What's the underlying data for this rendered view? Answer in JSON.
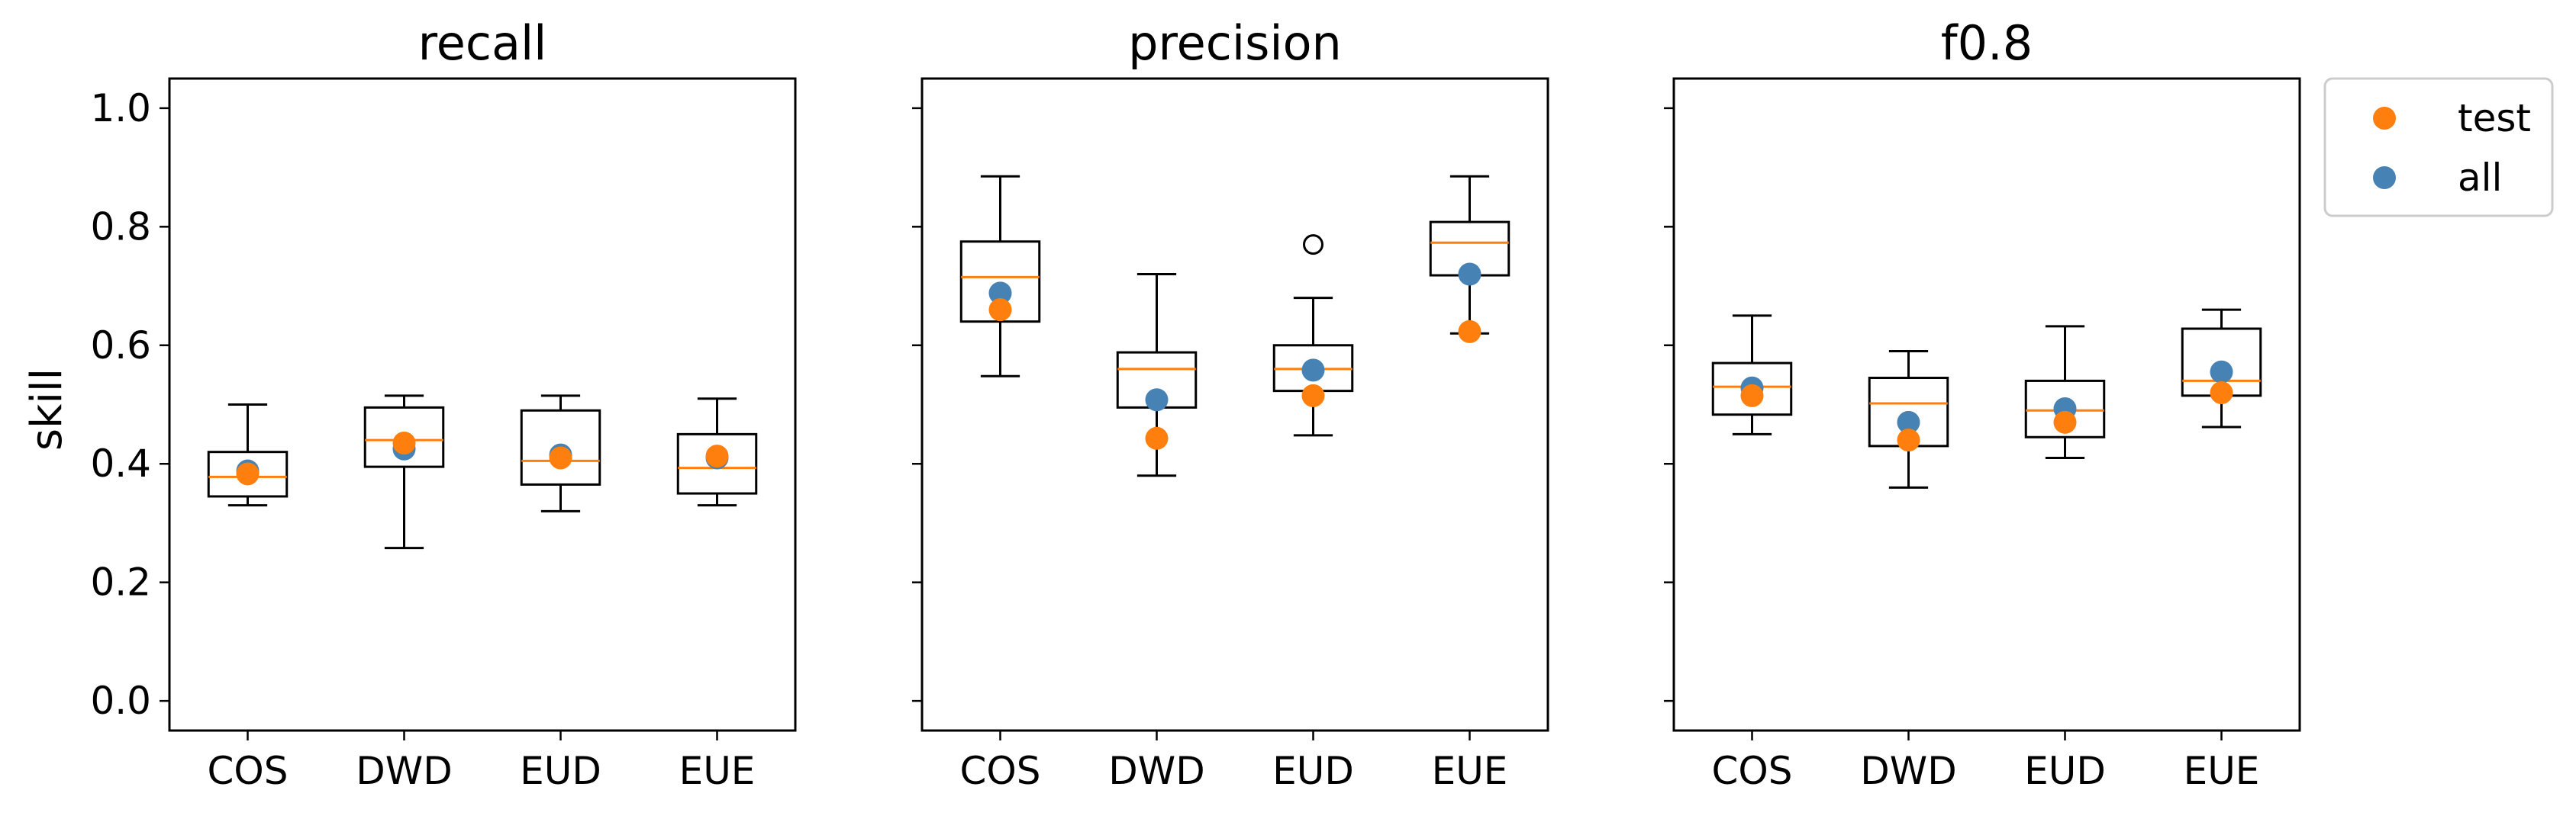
{
  "chart_data": {
    "type": "box",
    "ylabel": "skill",
    "ylim": [
      -0.05,
      1.05
    ],
    "yticks": [
      "0.0",
      "0.2",
      "0.4",
      "0.6",
      "0.8",
      "1.0"
    ],
    "categories": [
      "COS",
      "DWD",
      "EUD",
      "EUE"
    ],
    "legend": {
      "placement": "outside-right",
      "entries": [
        {
          "name": "test",
          "color": "#ff7f0e"
        },
        {
          "name": "all",
          "color": "#4682b4"
        }
      ]
    },
    "colors": {
      "median": "#ff7f0e",
      "test": "#ff7f0e",
      "all": "#4682b4",
      "box": "#000000"
    },
    "panels": [
      {
        "title": "recall",
        "boxes": [
          {
            "category": "COS",
            "whislo": 0.33,
            "q1": 0.345,
            "med": 0.378,
            "q3": 0.42,
            "whishi": 0.5,
            "fliers": []
          },
          {
            "category": "DWD",
            "whislo": 0.258,
            "q1": 0.395,
            "med": 0.44,
            "q3": 0.495,
            "whishi": 0.515,
            "fliers": []
          },
          {
            "category": "EUD",
            "whislo": 0.32,
            "q1": 0.365,
            "med": 0.405,
            "q3": 0.49,
            "whishi": 0.515,
            "fliers": []
          },
          {
            "category": "EUE",
            "whislo": 0.33,
            "q1": 0.35,
            "med": 0.393,
            "q3": 0.45,
            "whishi": 0.51,
            "fliers": []
          }
        ],
        "all": [
          0.388,
          0.425,
          0.415,
          0.41
        ],
        "test": [
          0.383,
          0.435,
          0.41,
          0.413
        ]
      },
      {
        "title": "precision",
        "boxes": [
          {
            "category": "COS",
            "whislo": 0.548,
            "q1": 0.64,
            "med": 0.715,
            "q3": 0.775,
            "whishi": 0.885,
            "fliers": []
          },
          {
            "category": "DWD",
            "whislo": 0.38,
            "q1": 0.495,
            "med": 0.56,
            "q3": 0.588,
            "whishi": 0.72,
            "fliers": []
          },
          {
            "category": "EUD",
            "whislo": 0.448,
            "q1": 0.523,
            "med": 0.56,
            "q3": 0.6,
            "whishi": 0.68,
            "fliers": [
              0.77
            ]
          },
          {
            "category": "EUE",
            "whislo": 0.62,
            "q1": 0.718,
            "med": 0.773,
            "q3": 0.808,
            "whishi": 0.885,
            "fliers": []
          }
        ],
        "all": [
          0.688,
          0.508,
          0.558,
          0.72
        ],
        "test": [
          0.66,
          0.443,
          0.515,
          0.623
        ]
      },
      {
        "title": "f0.8",
        "boxes": [
          {
            "category": "COS",
            "whislo": 0.45,
            "q1": 0.483,
            "med": 0.53,
            "q3": 0.57,
            "whishi": 0.65,
            "fliers": []
          },
          {
            "category": "DWD",
            "whislo": 0.36,
            "q1": 0.43,
            "med": 0.502,
            "q3": 0.545,
            "whishi": 0.59,
            "fliers": []
          },
          {
            "category": "EUD",
            "whislo": 0.41,
            "q1": 0.445,
            "med": 0.49,
            "q3": 0.54,
            "whishi": 0.632,
            "fliers": []
          },
          {
            "category": "EUE",
            "whislo": 0.462,
            "q1": 0.515,
            "med": 0.54,
            "q3": 0.628,
            "whishi": 0.66,
            "fliers": []
          }
        ],
        "all": [
          0.528,
          0.47,
          0.493,
          0.555
        ],
        "test": [
          0.515,
          0.44,
          0.47,
          0.52
        ]
      }
    ]
  }
}
